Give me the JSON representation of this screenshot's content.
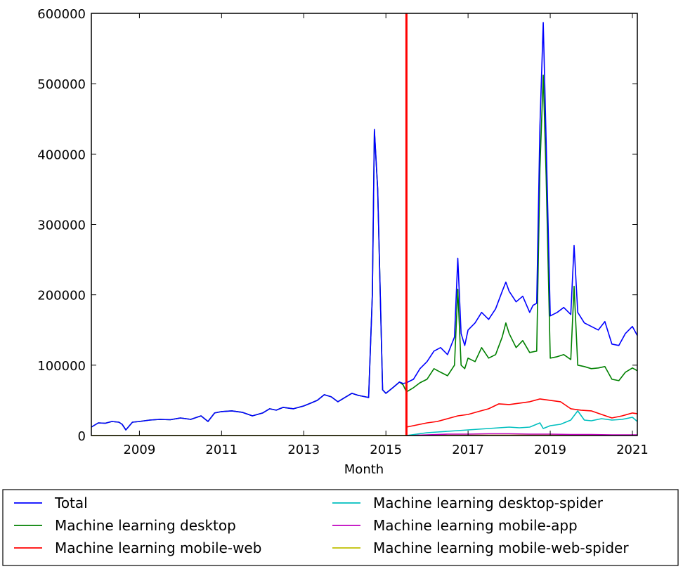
{
  "chart_data": {
    "type": "line",
    "title": "",
    "xlabel": "Month",
    "ylabel": "",
    "xlim": [
      2007.83,
      2021.12
    ],
    "ylim": [
      0,
      600000
    ],
    "x_ticks": [
      "2009",
      "2011",
      "2013",
      "2015",
      "2017",
      "2019",
      "2021"
    ],
    "y_ticks": [
      "0",
      "100000",
      "200000",
      "300000",
      "400000",
      "500000",
      "600000"
    ],
    "vertical_marker": {
      "x": 2015.5,
      "color": "#ff0000"
    },
    "grid": false,
    "legend_position": "below",
    "series": [
      {
        "name": "Total",
        "color": "#0000ff",
        "points": [
          [
            2007.83,
            12000
          ],
          [
            2008.0,
            18000
          ],
          [
            2008.17,
            17500
          ],
          [
            2008.33,
            20000
          ],
          [
            2008.5,
            19000
          ],
          [
            2008.58,
            16000
          ],
          [
            2008.67,
            8000
          ],
          [
            2008.83,
            19000
          ],
          [
            2009.0,
            20000
          ],
          [
            2009.25,
            22000
          ],
          [
            2009.5,
            23000
          ],
          [
            2009.75,
            22500
          ],
          [
            2010.0,
            25000
          ],
          [
            2010.25,
            23000
          ],
          [
            2010.5,
            28000
          ],
          [
            2010.67,
            20000
          ],
          [
            2010.83,
            32000
          ],
          [
            2011.0,
            34000
          ],
          [
            2011.25,
            35000
          ],
          [
            2011.5,
            33000
          ],
          [
            2011.75,
            28000
          ],
          [
            2012.0,
            32000
          ],
          [
            2012.17,
            38000
          ],
          [
            2012.33,
            36000
          ],
          [
            2012.5,
            40000
          ],
          [
            2012.75,
            38000
          ],
          [
            2013.0,
            42000
          ],
          [
            2013.17,
            46000
          ],
          [
            2013.33,
            50000
          ],
          [
            2013.5,
            58000
          ],
          [
            2013.67,
            55000
          ],
          [
            2013.83,
            48000
          ],
          [
            2014.0,
            54000
          ],
          [
            2014.17,
            60000
          ],
          [
            2014.33,
            57000
          ],
          [
            2014.5,
            55000
          ],
          [
            2014.58,
            54000
          ],
          [
            2014.67,
            200000
          ],
          [
            2014.72,
            435000
          ],
          [
            2014.8,
            350000
          ],
          [
            2014.92,
            65000
          ],
          [
            2015.0,
            60000
          ],
          [
            2015.17,
            68000
          ],
          [
            2015.33,
            76000
          ],
          [
            2015.42,
            74000
          ],
          [
            2015.5,
            75000
          ],
          [
            2015.67,
            80000
          ],
          [
            2015.83,
            95000
          ],
          [
            2016.0,
            105000
          ],
          [
            2016.17,
            120000
          ],
          [
            2016.33,
            125000
          ],
          [
            2016.5,
            115000
          ],
          [
            2016.67,
            140000
          ],
          [
            2016.75,
            252000
          ],
          [
            2016.83,
            145000
          ],
          [
            2016.92,
            128000
          ],
          [
            2017.0,
            150000
          ],
          [
            2017.17,
            160000
          ],
          [
            2017.33,
            175000
          ],
          [
            2017.5,
            165000
          ],
          [
            2017.67,
            180000
          ],
          [
            2017.83,
            205000
          ],
          [
            2017.92,
            218000
          ],
          [
            2018.0,
            205000
          ],
          [
            2018.17,
            190000
          ],
          [
            2018.33,
            198000
          ],
          [
            2018.5,
            175000
          ],
          [
            2018.58,
            185000
          ],
          [
            2018.67,
            188000
          ],
          [
            2018.75,
            440000
          ],
          [
            2018.83,
            587000
          ],
          [
            2018.9,
            420000
          ],
          [
            2019.0,
            170000
          ],
          [
            2019.17,
            175000
          ],
          [
            2019.33,
            182000
          ],
          [
            2019.5,
            172000
          ],
          [
            2019.58,
            270000
          ],
          [
            2019.67,
            175000
          ],
          [
            2019.83,
            160000
          ],
          [
            2020.0,
            155000
          ],
          [
            2020.17,
            150000
          ],
          [
            2020.33,
            162000
          ],
          [
            2020.5,
            130000
          ],
          [
            2020.67,
            128000
          ],
          [
            2020.83,
            145000
          ],
          [
            2021.0,
            155000
          ],
          [
            2021.12,
            142000
          ]
        ]
      },
      {
        "name": "Machine learning desktop",
        "color": "#008000",
        "points": [
          [
            2007.83,
            12000
          ],
          [
            2008.0,
            18000
          ],
          [
            2008.17,
            17500
          ],
          [
            2008.33,
            20000
          ],
          [
            2008.5,
            19000
          ],
          [
            2008.58,
            16000
          ],
          [
            2008.67,
            8000
          ],
          [
            2008.83,
            19000
          ],
          [
            2009.0,
            20000
          ],
          [
            2009.25,
            22000
          ],
          [
            2009.5,
            23000
          ],
          [
            2009.75,
            22500
          ],
          [
            2010.0,
            25000
          ],
          [
            2010.25,
            23000
          ],
          [
            2010.5,
            28000
          ],
          [
            2010.67,
            20000
          ],
          [
            2010.83,
            32000
          ],
          [
            2011.0,
            34000
          ],
          [
            2011.25,
            35000
          ],
          [
            2011.5,
            33000
          ],
          [
            2011.75,
            28000
          ],
          [
            2012.0,
            32000
          ],
          [
            2012.17,
            38000
          ],
          [
            2012.33,
            36000
          ],
          [
            2012.5,
            40000
          ],
          [
            2012.75,
            38000
          ],
          [
            2013.0,
            42000
          ],
          [
            2013.17,
            46000
          ],
          [
            2013.33,
            50000
          ],
          [
            2013.5,
            58000
          ],
          [
            2013.67,
            55000
          ],
          [
            2013.83,
            48000
          ],
          [
            2014.0,
            54000
          ],
          [
            2014.17,
            60000
          ],
          [
            2014.33,
            57000
          ],
          [
            2014.5,
            55000
          ],
          [
            2014.58,
            54000
          ],
          [
            2014.67,
            200000
          ],
          [
            2014.72,
            433000
          ],
          [
            2014.8,
            350000
          ],
          [
            2014.92,
            65000
          ],
          [
            2015.0,
            60000
          ],
          [
            2015.17,
            68000
          ],
          [
            2015.33,
            76000
          ],
          [
            2015.42,
            72000
          ],
          [
            2015.5,
            62000
          ],
          [
            2015.67,
            68000
          ],
          [
            2015.83,
            75000
          ],
          [
            2016.0,
            80000
          ],
          [
            2016.17,
            95000
          ],
          [
            2016.33,
            90000
          ],
          [
            2016.5,
            85000
          ],
          [
            2016.67,
            100000
          ],
          [
            2016.75,
            208000
          ],
          [
            2016.83,
            100000
          ],
          [
            2016.92,
            95000
          ],
          [
            2017.0,
            110000
          ],
          [
            2017.17,
            105000
          ],
          [
            2017.33,
            125000
          ],
          [
            2017.5,
            110000
          ],
          [
            2017.67,
            115000
          ],
          [
            2017.83,
            140000
          ],
          [
            2017.92,
            160000
          ],
          [
            2018.0,
            145000
          ],
          [
            2018.17,
            125000
          ],
          [
            2018.33,
            135000
          ],
          [
            2018.5,
            118000
          ],
          [
            2018.67,
            120000
          ],
          [
            2018.75,
            380000
          ],
          [
            2018.83,
            512000
          ],
          [
            2018.9,
            370000
          ],
          [
            2019.0,
            110000
          ],
          [
            2019.17,
            112000
          ],
          [
            2019.33,
            115000
          ],
          [
            2019.5,
            108000
          ],
          [
            2019.58,
            212000
          ],
          [
            2019.67,
            100000
          ],
          [
            2019.83,
            98000
          ],
          [
            2020.0,
            95000
          ],
          [
            2020.17,
            96000
          ],
          [
            2020.33,
            98000
          ],
          [
            2020.5,
            80000
          ],
          [
            2020.67,
            78000
          ],
          [
            2020.83,
            90000
          ],
          [
            2021.0,
            96000
          ],
          [
            2021.12,
            92000
          ]
        ]
      },
      {
        "name": "Machine learning mobile-web",
        "color": "#ff0000",
        "points": [
          [
            2015.5,
            12000
          ],
          [
            2015.75,
            15000
          ],
          [
            2016.0,
            18000
          ],
          [
            2016.25,
            20000
          ],
          [
            2016.5,
            24000
          ],
          [
            2016.75,
            28000
          ],
          [
            2017.0,
            30000
          ],
          [
            2017.25,
            34000
          ],
          [
            2017.5,
            38000
          ],
          [
            2017.75,
            45000
          ],
          [
            2018.0,
            44000
          ],
          [
            2018.25,
            46000
          ],
          [
            2018.5,
            48000
          ],
          [
            2018.75,
            52000
          ],
          [
            2019.0,
            50000
          ],
          [
            2019.25,
            48000
          ],
          [
            2019.5,
            38000
          ],
          [
            2019.75,
            36000
          ],
          [
            2020.0,
            35000
          ],
          [
            2020.25,
            30000
          ],
          [
            2020.5,
            25000
          ],
          [
            2020.75,
            28000
          ],
          [
            2021.0,
            32000
          ],
          [
            2021.12,
            31000
          ]
        ]
      },
      {
        "name": "Machine learning desktop-spider",
        "color": "#00bfbf",
        "points": [
          [
            2015.5,
            0
          ],
          [
            2015.75,
            2000
          ],
          [
            2016.0,
            4000
          ],
          [
            2016.25,
            5000
          ],
          [
            2016.5,
            6000
          ],
          [
            2016.75,
            7000
          ],
          [
            2017.0,
            8000
          ],
          [
            2017.25,
            9000
          ],
          [
            2017.5,
            10000
          ],
          [
            2017.75,
            11000
          ],
          [
            2018.0,
            12000
          ],
          [
            2018.25,
            11000
          ],
          [
            2018.5,
            12000
          ],
          [
            2018.75,
            18000
          ],
          [
            2018.83,
            10000
          ],
          [
            2019.0,
            14000
          ],
          [
            2019.25,
            16000
          ],
          [
            2019.5,
            22000
          ],
          [
            2019.67,
            35000
          ],
          [
            2019.83,
            22000
          ],
          [
            2020.0,
            21000
          ],
          [
            2020.25,
            24000
          ],
          [
            2020.5,
            22000
          ],
          [
            2020.75,
            23000
          ],
          [
            2021.0,
            26000
          ],
          [
            2021.12,
            20000
          ]
        ]
      },
      {
        "name": "Machine learning mobile-app",
        "color": "#bf00bf",
        "points": [
          [
            2015.5,
            0
          ],
          [
            2016.0,
            1000
          ],
          [
            2016.5,
            2000
          ],
          [
            2017.0,
            2000
          ],
          [
            2017.5,
            2500
          ],
          [
            2018.0,
            2500
          ],
          [
            2018.5,
            2000
          ],
          [
            2019.0,
            2000
          ],
          [
            2019.5,
            1500
          ],
          [
            2020.0,
            1500
          ],
          [
            2020.5,
            1000
          ],
          [
            2021.12,
            1000
          ]
        ]
      },
      {
        "name": "Machine learning mobile-web-spider",
        "color": "#bfbf00",
        "points": [
          [
            2007.83,
            0
          ],
          [
            2015.5,
            0
          ],
          [
            2016.0,
            300
          ],
          [
            2017.0,
            500
          ],
          [
            2018.0,
            500
          ],
          [
            2019.0,
            600
          ],
          [
            2020.0,
            500
          ],
          [
            2021.12,
            500
          ]
        ]
      }
    ]
  }
}
